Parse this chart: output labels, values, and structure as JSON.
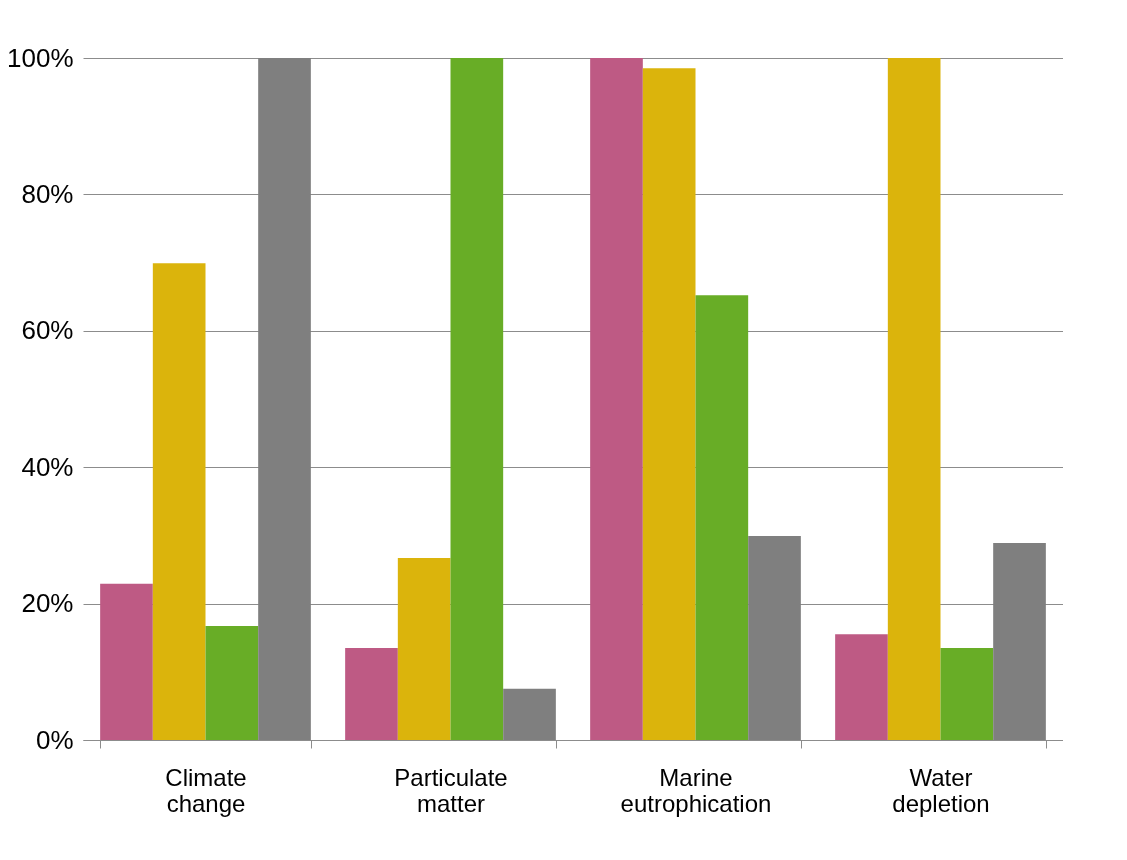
{
  "chart_data": {
    "type": "bar",
    "categories": [
      "Climate change",
      "Particulate matter",
      "Marine eutrophication",
      "Water depletion"
    ],
    "series": [
      {
        "color": "#be5a84",
        "values": [
          22.9,
          13.5,
          100,
          15.5
        ]
      },
      {
        "color": "#dbb40c",
        "values": [
          69.9,
          26.7,
          98.5,
          100
        ]
      },
      {
        "color": "#68ad26",
        "values": [
          16.7,
          100,
          65.2,
          13.5
        ]
      },
      {
        "color": "#7f7f7f",
        "values": [
          100,
          7.5,
          29.9,
          28.9
        ]
      }
    ],
    "ylim": [
      0,
      100
    ],
    "yticks": [
      {
        "value": 0,
        "label": "0%"
      },
      {
        "value": 20,
        "label": "20%"
      },
      {
        "value": 40,
        "label": "40%"
      },
      {
        "value": 60,
        "label": "60%"
      },
      {
        "value": 80,
        "label": "80%"
      },
      {
        "value": 100,
        "label": "100%"
      }
    ],
    "grid": "y"
  }
}
